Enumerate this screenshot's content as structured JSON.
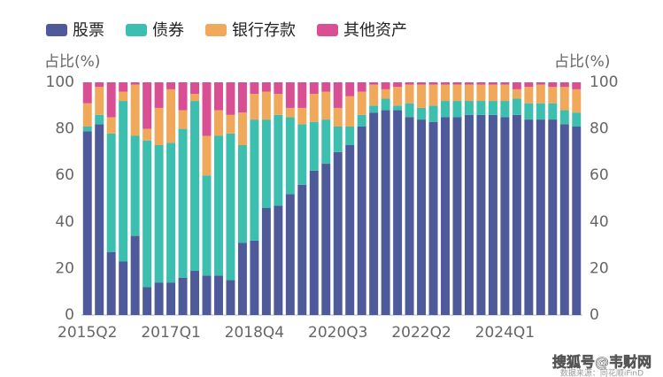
{
  "chart_data": {
    "type": "stacked_bar",
    "y_label": "占比(%)",
    "y2_label": "占比(%)",
    "categories": [
      "2015Q2",
      null,
      null,
      null,
      null,
      null,
      null,
      "2017Q1",
      null,
      null,
      null,
      null,
      null,
      null,
      "2018Q4",
      null,
      null,
      null,
      null,
      null,
      null,
      "2020Q3",
      null,
      null,
      null,
      null,
      null,
      null,
      "2022Q2",
      null,
      null,
      null,
      null,
      null,
      null,
      "2024Q1",
      null,
      null,
      null,
      null,
      null,
      null
    ],
    "series": [
      {
        "name": "股票",
        "color": "#4e5a9a",
        "values": [
          79,
          82,
          27,
          23,
          34,
          12,
          14,
          14,
          16,
          19,
          17,
          17,
          15,
          31,
          32,
          46,
          47,
          52,
          56,
          62,
          65,
          70,
          73,
          81,
          87,
          88,
          88,
          85,
          84,
          83,
          85,
          85,
          86,
          86,
          86,
          85,
          86,
          84,
          84,
          84,
          82,
          81
        ]
      },
      {
        "name": "债券",
        "color": "#3dbfb0",
        "values": [
          2,
          4,
          51,
          69,
          43,
          63,
          59,
          60,
          64,
          73,
          43,
          60,
          63,
          42,
          52,
          38,
          39,
          33,
          26,
          21,
          19,
          11,
          8,
          5,
          3,
          5,
          2,
          6,
          5,
          7,
          7,
          7,
          6,
          6,
          6,
          7,
          7,
          7,
          7,
          7,
          6,
          6
        ]
      },
      {
        "name": "银行存款",
        "color": "#f0a85a",
        "values": [
          10,
          12,
          7,
          4,
          22,
          5,
          16,
          23,
          8,
          3,
          17,
          11,
          8,
          14,
          11,
          12,
          9,
          4,
          7,
          12,
          12,
          8,
          13,
          10,
          9,
          4,
          8,
          8,
          10,
          9,
          7,
          7,
          7,
          7,
          7,
          7,
          4,
          7,
          8,
          7,
          10,
          10
        ]
      },
      {
        "name": "其他资产",
        "color": "#d94f93",
        "values": [
          9,
          2,
          15,
          4,
          1,
          20,
          11,
          3,
          12,
          5,
          23,
          12,
          14,
          13,
          5,
          4,
          5,
          11,
          11,
          5,
          4,
          11,
          6,
          4,
          1,
          3,
          2,
          1,
          1,
          1,
          1,
          1,
          1,
          1,
          1,
          1,
          3,
          2,
          1,
          2,
          2,
          3
        ]
      }
    ],
    "ylim": [
      0,
      100
    ],
    "yticks": [
      0,
      20,
      40,
      60,
      80,
      100
    ],
    "y2lim": [
      0,
      100
    ],
    "y2ticks": [
      0,
      20,
      40,
      60,
      80,
      100
    ],
    "watermark": "搜狐号@韦财网",
    "source": "数据来源：同花顺iFinD"
  }
}
